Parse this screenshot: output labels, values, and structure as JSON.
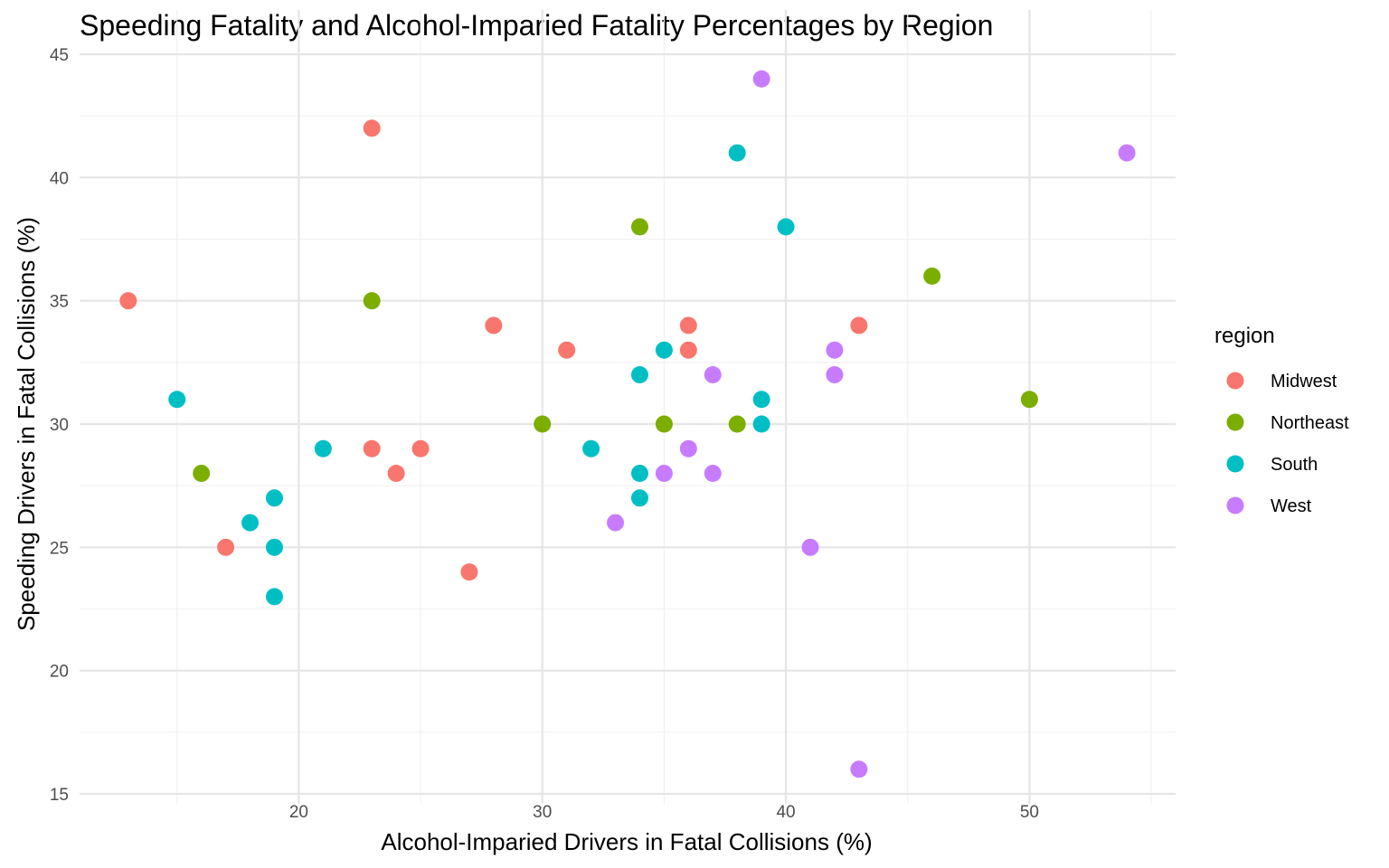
{
  "chart_data": {
    "type": "scatter",
    "title": "Speeding Fatality and Alcohol-Imparied Fatality Percentages by Region",
    "xlabel": "Alcohol-Imparied Drivers in Fatal Collisions (%)",
    "ylabel": "Speeding Drivers in Fatal Collisions (%)",
    "xlim": [
      11,
      56
    ],
    "ylim": [
      15,
      45
    ],
    "x_ticks": [
      20,
      30,
      40,
      50
    ],
    "y_ticks": [
      15,
      20,
      25,
      30,
      35,
      40,
      45
    ],
    "grid": true,
    "legend": {
      "title": "region",
      "position": "right"
    },
    "series": [
      {
        "name": "Midwest",
        "color": "#F8766D",
        "points": [
          [
            13,
            35
          ],
          [
            17,
            25
          ],
          [
            23,
            42
          ],
          [
            23,
            29
          ],
          [
            24,
            28
          ],
          [
            25,
            29
          ],
          [
            27,
            24
          ],
          [
            28,
            34
          ],
          [
            31,
            33
          ],
          [
            36,
            34
          ],
          [
            36,
            33
          ],
          [
            43,
            34
          ]
        ]
      },
      {
        "name": "Northeast",
        "color": "#7CAE00",
        "points": [
          [
            16,
            28
          ],
          [
            23,
            35
          ],
          [
            30,
            30
          ],
          [
            34,
            38
          ],
          [
            35,
            30
          ],
          [
            38,
            30
          ],
          [
            46,
            36
          ],
          [
            50,
            31
          ]
        ]
      },
      {
        "name": "South",
        "color": "#00BFC4",
        "points": [
          [
            15,
            31
          ],
          [
            18,
            26
          ],
          [
            19,
            27
          ],
          [
            19,
            25
          ],
          [
            19,
            23
          ],
          [
            21,
            29
          ],
          [
            32,
            29
          ],
          [
            34,
            32
          ],
          [
            34,
            28
          ],
          [
            34,
            27
          ],
          [
            35,
            33
          ],
          [
            38,
            41
          ],
          [
            39,
            31
          ],
          [
            39,
            30
          ],
          [
            40,
            38
          ]
        ]
      },
      {
        "name": "West",
        "color": "#C77CFF",
        "points": [
          [
            33,
            26
          ],
          [
            35,
            28
          ],
          [
            36,
            29
          ],
          [
            37,
            32
          ],
          [
            37,
            28
          ],
          [
            39,
            44
          ],
          [
            41,
            25
          ],
          [
            42,
            33
          ],
          [
            42,
            32
          ],
          [
            43,
            16
          ],
          [
            54,
            41
          ]
        ]
      }
    ]
  }
}
